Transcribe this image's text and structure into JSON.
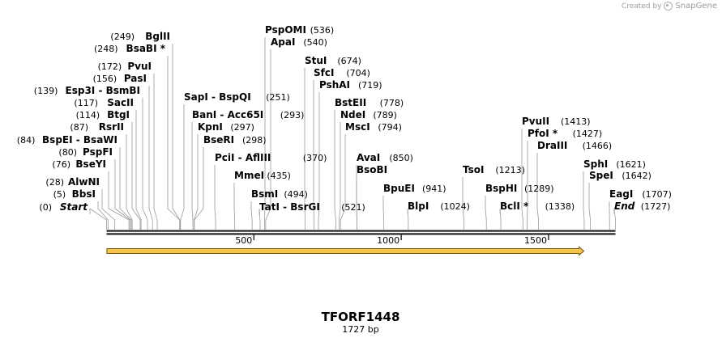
{
  "credit": {
    "prefix": "Created by",
    "brand": "SnapGene"
  },
  "map": {
    "name": "TFORF1448",
    "length_label": "1727 bp",
    "length": 1727
  },
  "ticks": [
    {
      "value": 500,
      "label": "500"
    },
    {
      "value": 1000,
      "label": "1000"
    },
    {
      "value": 1500,
      "label": "1500"
    }
  ],
  "feature": {
    "start": 1,
    "end": 1620,
    "color": "#f2c44a"
  },
  "sites": [
    {
      "pos": 0,
      "label": "Start",
      "text": "(0)",
      "italic": true
    },
    {
      "pos": 5,
      "label": "BbsI",
      "text": "(5)"
    },
    {
      "pos": 28,
      "label": "AlwNI",
      "text": "(28)"
    },
    {
      "pos": 76,
      "label": "BseYI",
      "text": "(76)"
    },
    {
      "pos": 80,
      "label": "PspFI",
      "text": "(80)"
    },
    {
      "pos": 84,
      "label": "BspEI - BsaWI",
      "text": "(84)"
    },
    {
      "pos": 87,
      "label": "RsrII",
      "text": "(87)"
    },
    {
      "pos": 114,
      "label": "BtgI",
      "text": "(114)"
    },
    {
      "pos": 117,
      "label": "SacII",
      "text": "(117)"
    },
    {
      "pos": 139,
      "label": "Esp3I - BsmBI",
      "text": "(139)"
    },
    {
      "pos": 156,
      "label": "PasI",
      "text": "(156)"
    },
    {
      "pos": 172,
      "label": "PvuI",
      "text": "(172)"
    },
    {
      "pos": 248,
      "label": "BsaBI *",
      "text": "(248)"
    },
    {
      "pos": 249,
      "label": "BglII",
      "text": "(249)"
    },
    {
      "pos": 251,
      "label": "SapI - BspQI",
      "text": "(251)"
    },
    {
      "pos": 293,
      "label": "BanI - Acc65I",
      "text": "(293)"
    },
    {
      "pos": 297,
      "label": "KpnI",
      "text": "(297)"
    },
    {
      "pos": 298,
      "label": "BseRI",
      "text": "(298)"
    },
    {
      "pos": 370,
      "label": "PciI - AflIII",
      "text": "(370)"
    },
    {
      "pos": 435,
      "label": "MmeI",
      "text": "(435)"
    },
    {
      "pos": 494,
      "label": "BsmI",
      "text": "(494)"
    },
    {
      "pos": 521,
      "label": "TatI - BsrGI",
      "text": "(521)"
    },
    {
      "pos": 536,
      "label": "PspOMI",
      "text": "(536)"
    },
    {
      "pos": 540,
      "label": "ApaI",
      "text": "(540)"
    },
    {
      "pos": 674,
      "label": "StuI",
      "text": "(674)"
    },
    {
      "pos": 704,
      "label": "SfcI",
      "text": "(704)"
    },
    {
      "pos": 719,
      "label": "PshAI",
      "text": "(719)"
    },
    {
      "pos": 778,
      "label": "BstEII",
      "text": "(778)"
    },
    {
      "pos": 789,
      "label": "NdeI",
      "text": "(789)"
    },
    {
      "pos": 794,
      "label": "MscI",
      "text": "(794)"
    },
    {
      "pos": 850,
      "label": "AvaI",
      "text": "(850)"
    },
    {
      "pos": 850,
      "label": "BsoBI",
      "text": ""
    },
    {
      "pos": 941,
      "label": "BpuEI",
      "text": "(941)"
    },
    {
      "pos": 1024,
      "label": "BlpI",
      "text": "(1024)"
    },
    {
      "pos": 1213,
      "label": "TsoI",
      "text": "(1213)"
    },
    {
      "pos": 1289,
      "label": "BspHI",
      "text": "(1289)"
    },
    {
      "pos": 1338,
      "label": "BclI *",
      "text": "(1338)"
    },
    {
      "pos": 1413,
      "label": "PvuII",
      "text": "(1413)"
    },
    {
      "pos": 1427,
      "label": "PfoI *",
      "text": "(1427)"
    },
    {
      "pos": 1466,
      "label": "DraIII",
      "text": "(1466)"
    },
    {
      "pos": 1621,
      "label": "SphI",
      "text": "(1621)"
    },
    {
      "pos": 1642,
      "label": "SpeI",
      "text": "(1642)"
    },
    {
      "pos": 1707,
      "label": "EagI",
      "text": "(1707)"
    },
    {
      "pos": 1727,
      "label": "End",
      "text": "(1727)",
      "italic": true
    }
  ]
}
